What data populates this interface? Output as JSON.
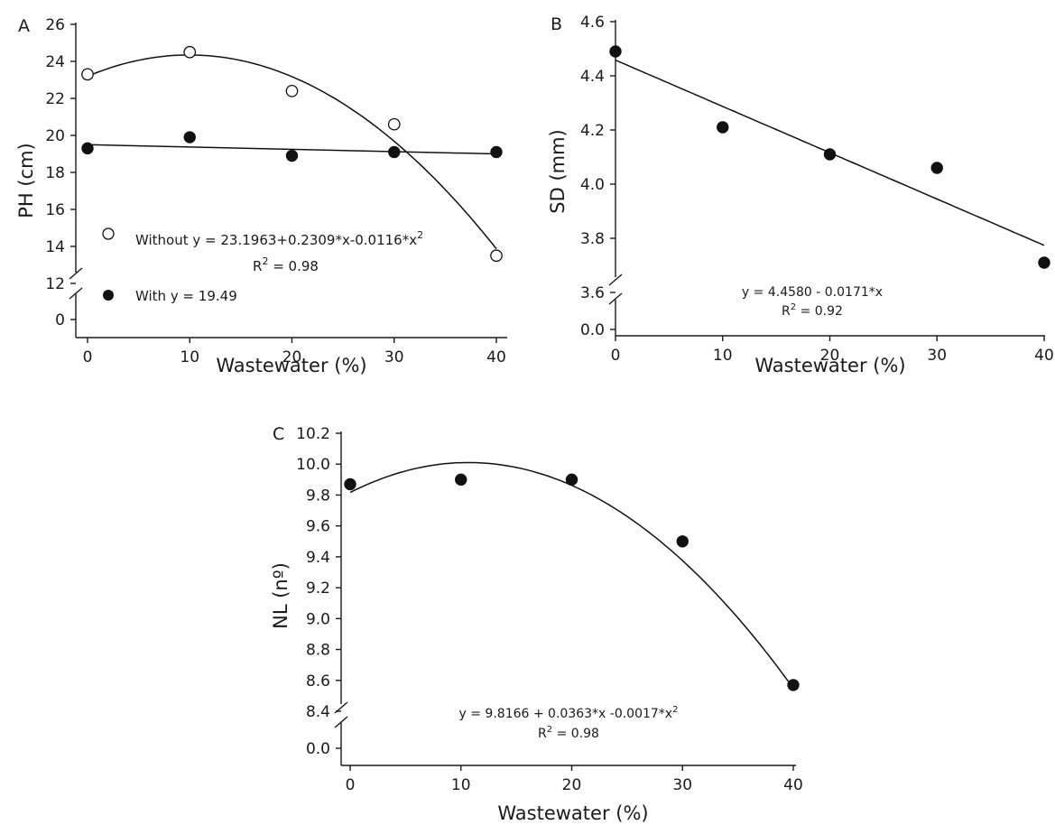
{
  "chart_data": [
    {
      "id": "A",
      "panel_label": "A",
      "type": "scatter",
      "xlabel": "Wastewater (%)",
      "ylabel": "PH (cm)",
      "xlim": [
        0,
        40
      ],
      "ylim": [
        12,
        26
      ],
      "axis_break": true,
      "break_baseline_label": "0",
      "xticks": [
        "0",
        "10",
        "20",
        "30",
        "40"
      ],
      "yticks": [
        "12",
        "14",
        "16",
        "18",
        "20",
        "22",
        "24",
        "26"
      ],
      "series": [
        {
          "name": "Without",
          "marker": "open-circle",
          "x": [
            0,
            10,
            20,
            30,
            40
          ],
          "y": [
            23.3,
            24.5,
            22.4,
            20.6,
            13.5
          ],
          "fit": {
            "kind": "quadratic",
            "coef": [
              23.1963,
              0.2309,
              -0.0116
            ]
          },
          "legend_text": "Without y = 23.1963+0.2309*x-0.0116*x",
          "legend_sup": "2",
          "r2_prefix": "R",
          "r2_sup": "2",
          "r2_value": " = 0.98"
        },
        {
          "name": "With",
          "marker": "filled-circle",
          "x": [
            0,
            10,
            20,
            30,
            40
          ],
          "y": [
            19.3,
            19.9,
            18.9,
            19.1,
            19.1
          ],
          "fit": {
            "kind": "linear_display",
            "from": 19.5,
            "to": 19.0
          },
          "legend_text": "With y = 19.49"
        }
      ]
    },
    {
      "id": "B",
      "panel_label": "B",
      "type": "scatter",
      "xlabel": "Wastewater (%)",
      "ylabel": "SD (mm)",
      "xlim": [
        0,
        40
      ],
      "ylim": [
        3.6,
        4.6
      ],
      "axis_break": true,
      "break_baseline_label": "0.0",
      "xticks": [
        "0",
        "10",
        "20",
        "30",
        "40"
      ],
      "yticks": [
        "3.6",
        "3.8",
        "4.0",
        "4.2",
        "4.4",
        "4.6"
      ],
      "series": [
        {
          "marker": "filled-circle",
          "x": [
            0,
            10,
            20,
            30,
            40
          ],
          "y": [
            4.49,
            4.21,
            4.11,
            4.06,
            3.71
          ],
          "fit": {
            "kind": "linear",
            "coef": [
              4.458,
              -0.0171
            ]
          }
        }
      ],
      "equation": "y = 4.4580 - 0.0171*x",
      "r2_prefix": "R",
      "r2_sup": "2",
      "r2_value": " = 0.92"
    },
    {
      "id": "C",
      "panel_label": "C",
      "type": "scatter",
      "xlabel": "Wastewater (%)",
      "ylabel": "NL (nº)",
      "xlim": [
        0,
        40
      ],
      "ylim": [
        8.4,
        10.2
      ],
      "axis_break": true,
      "break_baseline_label": "0.0",
      "xticks": [
        "0",
        "10",
        "20",
        "30",
        "40"
      ],
      "yticks": [
        "8.4",
        "8.6",
        "8.8",
        "9.0",
        "9.2",
        "9.4",
        "9.6",
        "9.8",
        "10.0",
        "10.2"
      ],
      "series": [
        {
          "marker": "filled-circle",
          "x": [
            0,
            10,
            20,
            30,
            40
          ],
          "y": [
            9.87,
            9.9,
            9.9,
            9.5,
            8.57
          ],
          "fit": {
            "kind": "quadratic",
            "coef": [
              9.8166,
              0.0363,
              -0.0017
            ]
          }
        }
      ],
      "equation": "y = 9.8166 + 0.0363*x -0.0017*x",
      "equation_sup": "2",
      "r2_prefix": "R",
      "r2_sup": "2",
      "r2_value": " = 0.98"
    }
  ]
}
